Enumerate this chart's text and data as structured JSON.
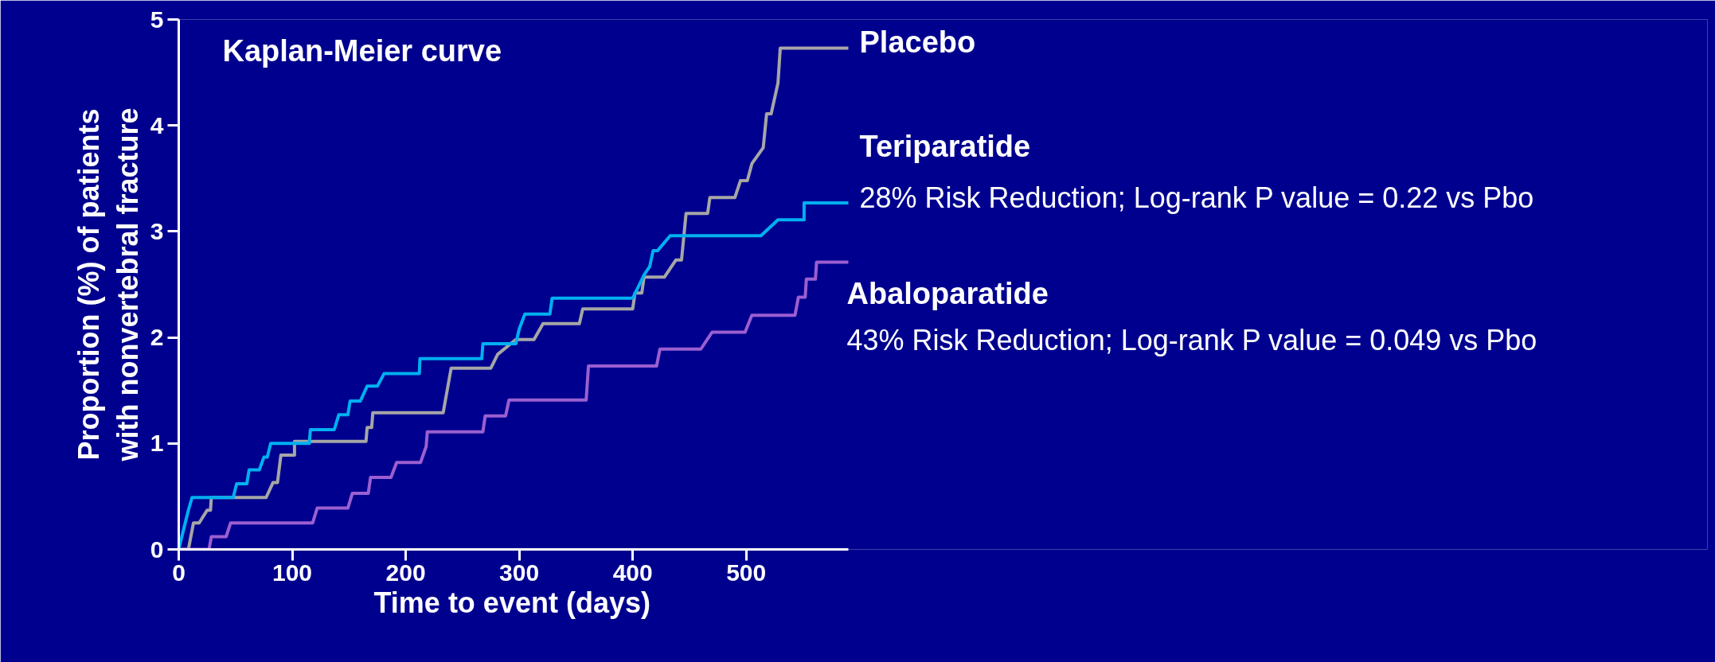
{
  "chart_data": {
    "type": "line",
    "title": "Kaplan-Meier curve",
    "xlabel": "Time to event (days)",
    "ylabel": "Proportion (%) of patients\nwith nonvertebral fracture",
    "xlim": [
      0,
      590
    ],
    "ylim": [
      0,
      5
    ],
    "xticks": [
      0,
      100,
      200,
      300,
      400,
      500
    ],
    "yticks": [
      0,
      1,
      2,
      3,
      4,
      5
    ],
    "grid": false,
    "line_style": "solid",
    "series": [
      {
        "name": "Placebo",
        "color": "#a6a6a6",
        "x": [
          0,
          8.5,
          13,
          18,
          25,
          28,
          28.7,
          77,
          83,
          87,
          90,
          102,
          102,
          165,
          166,
          170,
          171,
          233,
          240,
          275,
          281,
          297,
          313,
          321,
          353,
          356,
          400,
          402,
          408,
          410,
          428,
          438,
          443,
          447,
          466,
          468,
          490,
          495,
          501,
          505,
          515,
          518,
          522,
          528,
          530,
          590
        ],
        "values": [
          0,
          0,
          0.25,
          0.25,
          0.37,
          0.37,
          0.49,
          0.49,
          0.63,
          0.63,
          0.89,
          0.89,
          1.02,
          1.02,
          1.15,
          1.15,
          1.29,
          1.29,
          1.71,
          1.71,
          1.84,
          1.98,
          1.98,
          2.13,
          2.13,
          2.27,
          2.27,
          2.42,
          2.42,
          2.57,
          2.57,
          2.73,
          2.73,
          3.17,
          3.17,
          3.32,
          3.32,
          3.48,
          3.48,
          3.64,
          3.79,
          4.11,
          4.11,
          4.4,
          4.73,
          4.73
        ]
      },
      {
        "name": "Teriparatide",
        "color": "#00b0f0",
        "x": [
          0,
          5,
          8.5,
          11.7,
          48,
          51,
          60,
          62,
          71,
          75,
          78,
          81,
          115,
          116,
          137,
          141,
          149,
          151,
          160,
          166,
          175,
          181,
          212,
          212.5,
          267,
          268,
          297,
          300,
          305,
          327,
          329,
          400,
          410,
          415,
          418,
          422,
          433,
          513,
          528,
          551,
          551,
          590
        ],
        "values": [
          0,
          0.22,
          0.37,
          0.49,
          0.49,
          0.62,
          0.62,
          0.75,
          0.75,
          0.87,
          0.87,
          1.0,
          1.0,
          1.13,
          1.13,
          1.27,
          1.27,
          1.4,
          1.4,
          1.54,
          1.54,
          1.66,
          1.66,
          1.8,
          1.8,
          1.94,
          1.94,
          2.08,
          2.22,
          2.22,
          2.37,
          2.37,
          2.59,
          2.67,
          2.82,
          2.82,
          2.96,
          2.96,
          3.11,
          3.11,
          3.27,
          3.27
        ]
      },
      {
        "name": "Abaloparatide",
        "color": "#9b5fd0",
        "x": [
          0,
          26.7,
          28.7,
          41.7,
          45.7,
          118,
          122,
          149,
          153,
          167,
          169,
          187,
          192,
          213,
          218,
          219,
          268,
          270,
          288,
          291,
          359,
          361,
          421,
          424,
          460,
          470,
          499,
          505,
          543,
          546,
          552,
          553,
          561,
          562,
          590
        ],
        "values": [
          0,
          0,
          0.12,
          0.12,
          0.25,
          0.25,
          0.39,
          0.39,
          0.53,
          0.53,
          0.68,
          0.68,
          0.82,
          0.82,
          0.97,
          1.11,
          1.11,
          1.26,
          1.26,
          1.41,
          1.41,
          1.73,
          1.73,
          1.89,
          1.89,
          2.05,
          2.05,
          2.21,
          2.21,
          2.38,
          2.38,
          2.55,
          2.55,
          2.71,
          2.71
        ]
      }
    ],
    "annotations": [
      "28% Risk Reduction; Log-rank P value = 0.22 vs Pbo",
      "43% Risk Reduction; Log-rank P value = 0.049 vs Pbo"
    ]
  }
}
